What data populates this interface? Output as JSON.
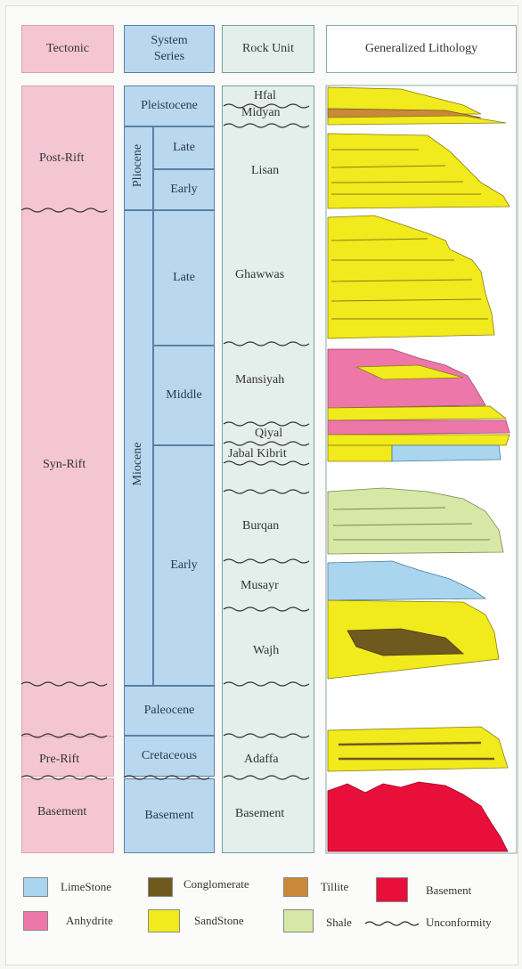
{
  "headers": {
    "tectonic": "Tectonic",
    "system_series": "System\nSeries",
    "rock_unit": "Rock Unit",
    "lithology": "Generalized Lithology"
  },
  "tectonic": [
    "Post-Rift",
    "Syn-Rift",
    "Pre-Rift",
    "Basement"
  ],
  "system": {
    "pleistocene": "Pleistocene",
    "pliocene": "Pliocene",
    "pliocene_late": "Late",
    "pliocene_early": "Early",
    "miocene": "Miocene",
    "miocene_late": "Late",
    "miocene_middle": "Middle",
    "miocene_early": "Early",
    "paleocene": "Paleocene",
    "cretaceous": "Cretaceous",
    "basement": "Basement"
  },
  "rock_units": [
    "Hfal",
    "Midyan",
    "Lisan",
    "Ghawwas",
    "Mansiyah",
    "Qiyal",
    "Jabal Kibrit",
    "Burqan",
    "Musayr",
    "Wajh",
    "Adaffa",
    "Basement"
  ],
  "legend": [
    {
      "label": "LimeStone",
      "color": "#a9d6ee"
    },
    {
      "label": "Conglomerate",
      "color": "#6e5a1e"
    },
    {
      "label": "Tillite",
      "color": "#c8893a"
    },
    {
      "label": "Basement",
      "color": "#e8103a"
    },
    {
      "label": "Anhydrite",
      "color": "#ec77a8"
    },
    {
      "label": "SandStone",
      "color": "#f1ea1c"
    },
    {
      "label": "Shale",
      "color": "#d6e7a6"
    },
    {
      "label": "Unconformity",
      "color": "#333333"
    }
  ]
}
